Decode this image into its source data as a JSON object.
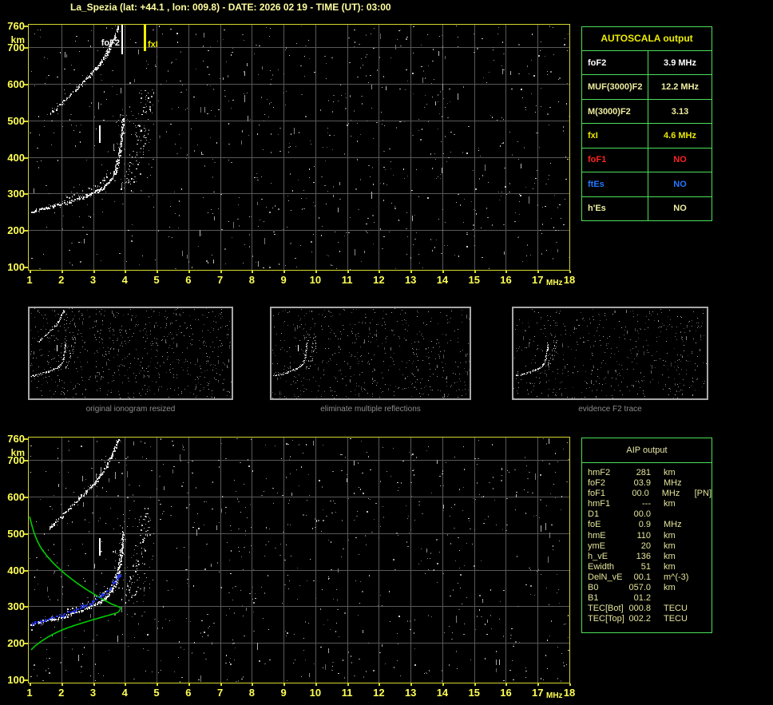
{
  "header": {
    "title": "La_Spezia (lat: +44.1 , lon: 009.8) - DATE: 2026 02 19 - TIME (UT): 03:00"
  },
  "plot_labels": {
    "y_unit": "km",
    "x_unit": "MHz",
    "fof2_marker": "foF2",
    "fxi_marker": "fxI"
  },
  "autoscala": {
    "title": "AUTOSCALA output",
    "rows": [
      {
        "label": "foF2",
        "value": "3.9 MHz",
        "color": "#ffffff"
      },
      {
        "label": "MUF(3000)F2",
        "value": "12.2 MHz",
        "color": "#eeeea0"
      },
      {
        "label": "M(3000)F2",
        "value": "3.13",
        "color": "#eeeea0"
      },
      {
        "label": "fxI",
        "value": "4.6 MHz",
        "color": "#e8e800"
      },
      {
        "label": "foF1",
        "value": "NO",
        "color": "#ff2222"
      },
      {
        "label": "ftEs",
        "value": "NO",
        "color": "#2277ff"
      },
      {
        "label": "h'Es",
        "value": "NO",
        "color": "#eeeea0"
      }
    ]
  },
  "aip": {
    "title": "AIP output",
    "rows": [
      {
        "label": "hmF2",
        "value": "281",
        "unit": "km",
        "extra": ""
      },
      {
        "label": "foF2",
        "value": "03.9",
        "unit": "MHz",
        "extra": ""
      },
      {
        "label": "foF1",
        "value": "00.0",
        "unit": "MHz",
        "extra": "[PN]"
      },
      {
        "label": "hmF1",
        "value": "---",
        "unit": "km",
        "extra": ""
      },
      {
        "label": "D1",
        "value": "00.0",
        "unit": "",
        "extra": ""
      },
      {
        "label": "foE",
        "value": "0.9",
        "unit": "MHz",
        "extra": ""
      },
      {
        "label": "hmE",
        "value": "110",
        "unit": "km",
        "extra": ""
      },
      {
        "label": "ymE",
        "value": "20",
        "unit": "km",
        "extra": ""
      },
      {
        "label": "h_vE",
        "value": "136",
        "unit": "km",
        "extra": ""
      },
      {
        "label": "Ewidth",
        "value": "51",
        "unit": "km",
        "extra": ""
      },
      {
        "label": "DelN_vE",
        "value": "00.1",
        "unit": "m^(-3)",
        "extra": ""
      },
      {
        "label": "B0",
        "value": "057.0",
        "unit": "km",
        "extra": ""
      },
      {
        "label": "B1",
        "value": "01.2",
        "unit": "",
        "extra": ""
      },
      {
        "label": "TEC[Bot]",
        "value": "000.8",
        "unit": "TECU",
        "extra": ""
      },
      {
        "label": "TEC[Top]",
        "value": "002.2",
        "unit": "TECU",
        "extra": ""
      }
    ]
  },
  "thumbnails": [
    {
      "caption": "original ionogram resized"
    },
    {
      "caption": "eliminate multiple reflections"
    },
    {
      "caption": "evidence F2 trace"
    }
  ],
  "chart_data": {
    "type": "scatter",
    "x_label": "MHz",
    "y_label": "km",
    "x_range": [
      1,
      18
    ],
    "y_range": [
      100,
      760
    ],
    "x_ticks": [
      1,
      2,
      3,
      4,
      5,
      6,
      7,
      8,
      9,
      10,
      11,
      12,
      13,
      14,
      15,
      16,
      17,
      18
    ],
    "y_ticks": [
      760,
      700,
      600,
      500,
      400,
      300,
      200,
      100
    ],
    "grid": true,
    "markers": [
      {
        "name": "foF2",
        "mhz": 3.9,
        "color": "#ffffff"
      },
      {
        "name": "fxI",
        "mhz": 4.6,
        "color": "#f0f000"
      }
    ],
    "traces": {
      "f2_echo": [
        [
          1.05,
          252
        ],
        [
          1.5,
          262
        ],
        [
          2.0,
          272
        ],
        [
          2.5,
          287
        ],
        [
          2.9,
          300
        ],
        [
          3.2,
          313
        ],
        [
          3.45,
          330
        ],
        [
          3.65,
          355
        ],
        [
          3.78,
          390
        ],
        [
          3.85,
          430
        ],
        [
          3.9,
          470
        ],
        [
          3.92,
          505
        ]
      ],
      "f2_echo_secondary": [
        [
          2.2,
          292
        ],
        [
          2.6,
          305
        ],
        [
          3.0,
          320
        ],
        [
          3.3,
          338
        ],
        [
          3.55,
          360
        ],
        [
          3.75,
          395
        ],
        [
          3.85,
          435
        ],
        [
          3.9,
          475
        ]
      ],
      "f2_multiple": [
        [
          1.6,
          515
        ],
        [
          2.0,
          548
        ],
        [
          2.4,
          583
        ],
        [
          2.8,
          618
        ],
        [
          3.1,
          645
        ],
        [
          3.3,
          668
        ],
        [
          3.5,
          700
        ],
        [
          3.65,
          728
        ],
        [
          3.78,
          758
        ]
      ],
      "x_mode": [
        [
          4.0,
          320
        ],
        [
          4.15,
          350
        ],
        [
          4.3,
          385
        ],
        [
          4.45,
          430
        ],
        [
          4.55,
          480
        ],
        [
          4.62,
          530
        ],
        [
          4.68,
          570
        ]
      ],
      "artifact": {
        "mhz": 3.2,
        "h1": 440,
        "h2": 487
      },
      "blue_fit": [
        [
          1.05,
          253
        ],
        [
          1.4,
          262
        ],
        [
          1.8,
          272
        ],
        [
          2.2,
          284
        ],
        [
          2.6,
          298
        ],
        [
          2.95,
          312
        ],
        [
          3.25,
          330
        ],
        [
          3.5,
          350
        ],
        [
          3.68,
          370
        ],
        [
          3.82,
          388
        ]
      ],
      "green_profile": [
        [
          1.0,
          546
        ],
        [
          1.15,
          500
        ],
        [
          1.35,
          462
        ],
        [
          1.65,
          428
        ],
        [
          2.0,
          398
        ],
        [
          2.4,
          370
        ],
        [
          2.8,
          346
        ],
        [
          3.2,
          325
        ],
        [
          3.55,
          308
        ],
        [
          3.8,
          299
        ],
        [
          3.86,
          295
        ],
        [
          3.78,
          284
        ],
        [
          3.5,
          276
        ],
        [
          3.1,
          266
        ],
        [
          2.6,
          253
        ],
        [
          2.1,
          238
        ],
        [
          1.7,
          222
        ],
        [
          1.4,
          206
        ],
        [
          1.18,
          192
        ],
        [
          1.05,
          181
        ]
      ]
    },
    "colors": {
      "frame": "#d6d62e",
      "grid": "#585858",
      "trace": "#ffffff",
      "profile_green": "#00cc00",
      "fit_blue": "#2233dd",
      "table_border_green": "#4ce05a",
      "axis_label_yellow": "#ffff55",
      "title_yellow": "#ffffa0"
    }
  }
}
